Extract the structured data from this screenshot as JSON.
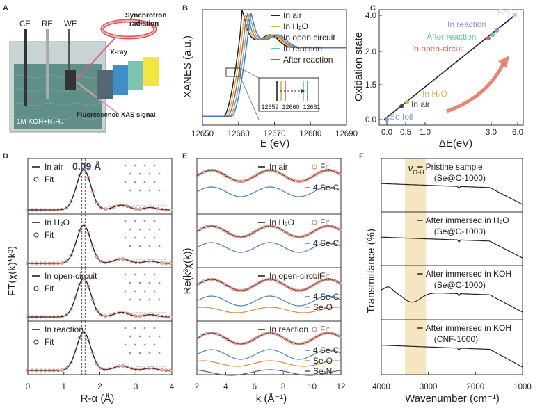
{
  "panel_letters": {
    "a": "A",
    "b": "B",
    "c": "C",
    "d": "D",
    "e": "E",
    "f": "F"
  },
  "panel_a": {
    "electrodes": [
      "CE",
      "RE",
      "WE"
    ],
    "electrolyte": "1M KOH+N₂H₄",
    "synchrotron": "Synchrotron radiation",
    "xray": "X-ray",
    "fluorescence": "Fluorescence XAS signal",
    "layers": [
      "Electrode",
      "Catalyst",
      "Carbon paper",
      "Kapton film"
    ],
    "colors": {
      "water": "#5f8f86",
      "tank": "#c9d3d5",
      "kapton": "#f2e640",
      "carbon": "#7cc4b0",
      "catalyst": "#3e8fc3",
      "electrode": "#556677"
    }
  },
  "chart_data": [
    {
      "type": "line",
      "panel": "B",
      "xlabel": "E (eV)",
      "ylabel": "XANES (a.u.)",
      "xlim": [
        12650,
        12690
      ],
      "xticks": [
        "12650",
        "12660",
        "12670",
        "12680",
        "12690"
      ],
      "legend_placement": "top-right",
      "series": [
        {
          "name": "In air",
          "color": "#222222"
        },
        {
          "name": "In H₂O",
          "color": "#d6b24a"
        },
        {
          "name": "In open circuit",
          "color": "#e05a4a"
        },
        {
          "name": "In reaction",
          "color": "#5ec4b4"
        },
        {
          "name": "After reaction",
          "color": "#4a78c8"
        }
      ],
      "inset": {
        "xticks": [
          "12659",
          "12660",
          "12661"
        ]
      }
    },
    {
      "type": "scatter",
      "panel": "C",
      "xlabel": "ΔE(eV)",
      "ylabel": "Oxidation state",
      "xticks": [
        "0.0",
        "0.5",
        "1.0",
        "3.0",
        "6.0"
      ],
      "yticks": [
        "0.0",
        "1.5",
        "2.0",
        "4.0"
      ],
      "points": [
        {
          "label": "Se foil",
          "x": 0.0,
          "y": 0.0,
          "color": "#7a9cc8"
        },
        {
          "label": "In air",
          "x": 0.7,
          "y": 0.35,
          "color": "#444444"
        },
        {
          "label": "In H₂O",
          "x": 0.9,
          "y": 0.45,
          "color": "#d6b24a"
        },
        {
          "label": "In open-circuit",
          "x": 3.0,
          "y": 2.3,
          "color": "#e05a4a"
        },
        {
          "label": "After reaction",
          "x": 3.2,
          "y": 2.4,
          "color": "#5ec4b4"
        },
        {
          "label": "In reaction",
          "x": 3.4,
          "y": 2.5,
          "color": "#9b8fd0"
        },
        {
          "label": "SeO₂",
          "x": 6.0,
          "y": 4.0,
          "color": "#d9c6ad"
        }
      ]
    },
    {
      "type": "line",
      "panel": "D",
      "xlabel": "R-α (Å)",
      "ylabel": "FT(χ(k)*k³)",
      "xlim": [
        0,
        4
      ],
      "xticks": [
        "0",
        "1",
        "2",
        "3",
        "4"
      ],
      "annotation": "0.09 Å",
      "subpanels": [
        "In air",
        "In H₂O",
        "In open-circuit",
        "In reaction"
      ],
      "fit_label": "Fit"
    },
    {
      "type": "line",
      "panel": "E",
      "xlabel": "k (Å⁻¹)",
      "ylabel": "Re(k³χ(k))",
      "xlim": [
        2,
        12
      ],
      "xticks": [
        "2",
        "4",
        "6",
        "8",
        "10",
        "12"
      ],
      "subpanels": [
        {
          "title": "In air",
          "paths": [
            "4 Se-C"
          ]
        },
        {
          "title": "In H₂O",
          "paths": [
            "4 Se-C"
          ]
        },
        {
          "title": "In open-circuit",
          "paths": [
            "4 Se-C",
            "Se-O"
          ]
        },
        {
          "title": "In reaction",
          "paths": [
            "4 Se-C",
            "Se-O",
            "Se-N"
          ]
        }
      ],
      "fit_label": "Fit",
      "path_colors": {
        "4 Se-C": "#4a7fc0",
        "Se-O": "#e08a3c",
        "Se-N": "#6a4aa8"
      }
    },
    {
      "type": "line",
      "panel": "F",
      "xlabel": "Wavenumber (cm⁻¹)",
      "ylabel": "Transmittance (%)",
      "xlim": [
        4000,
        1000
      ],
      "xticks": [
        "4000",
        "3000",
        "2000",
        "1000"
      ],
      "band_label": "ν",
      "band_sub": "O-H",
      "band_range": [
        3500,
        3050
      ],
      "band_color": "#f3e2b6",
      "subpanels": [
        {
          "title": "Pristine sample",
          "sample": "(Se@C-1000)"
        },
        {
          "title": "After immersed in H₂O",
          "sample": "(Se@C-1000)"
        },
        {
          "title": "After immersed in KOH",
          "sample": "(Se@C-1000)"
        },
        {
          "title": "After immersed in KOH",
          "sample": "(CNF-1000)"
        }
      ]
    }
  ]
}
